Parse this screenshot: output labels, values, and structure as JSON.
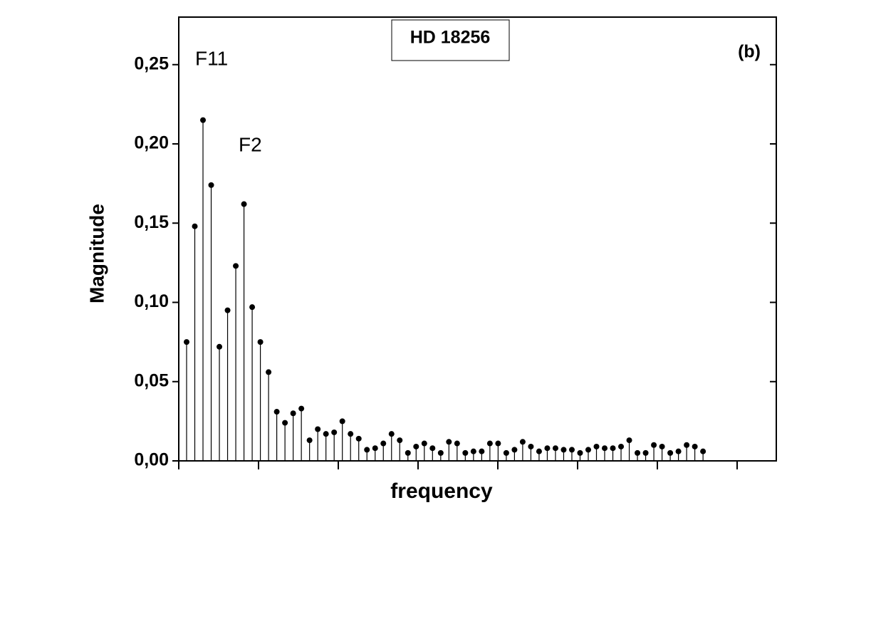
{
  "chart_data": {
    "type": "stem",
    "title": "HD 18256",
    "panel_label": "(b)",
    "x_label": "frequency",
    "y_label": "Magnitude",
    "annotations": [
      "F11",
      "F2"
    ],
    "color": "#000000",
    "values": [
      0.075,
      0.148,
      0.215,
      0.174,
      0.072,
      0.095,
      0.123,
      0.162,
      0.097,
      0.075,
      0.056,
      0.031,
      0.024,
      0.03,
      0.033,
      0.013,
      0.02,
      0.017,
      0.018,
      0.025,
      0.017,
      0.014,
      0.007,
      0.008,
      0.011,
      0.017,
      0.013,
      0.005,
      0.009,
      0.011,
      0.008,
      0.005,
      0.012,
      0.011,
      0.005,
      0.006,
      0.006,
      0.011,
      0.011,
      0.005,
      0.007,
      0.012,
      0.009,
      0.006,
      0.008,
      0.008,
      0.007,
      0.007,
      0.005,
      0.007,
      0.009,
      0.008,
      0.008,
      0.009,
      0.013,
      0.005,
      0.005,
      0.01,
      0.009,
      0.005,
      0.006,
      0.01,
      0.009,
      0.006
    ],
    "ylim": [
      0,
      0.28
    ],
    "yticks": [
      {
        "value": 0,
        "label": "0,00"
      },
      {
        "value": 0.05,
        "label": "0,05"
      },
      {
        "value": 0.1,
        "label": "0,10"
      },
      {
        "value": 0.15,
        "label": "0,15"
      },
      {
        "value": 0.2,
        "label": "0,20"
      },
      {
        "value": 0.25,
        "label": "0,25"
      }
    ]
  }
}
